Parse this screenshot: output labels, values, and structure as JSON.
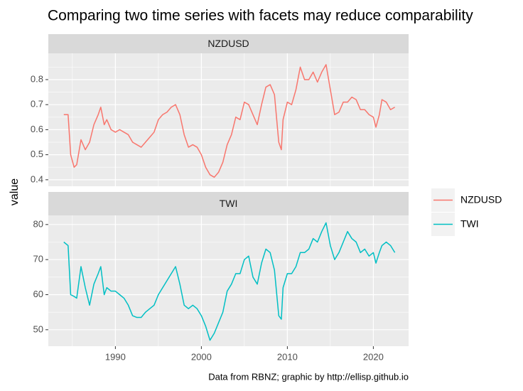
{
  "title": "Comparing two time series with facets may reduce comparability",
  "y_label": "value",
  "caption": "Data from RBNZ; graphic by http://ellisp.github.io",
  "chart_data": [
    {
      "type": "line",
      "x": [
        1984.0,
        1984.5,
        1984.8,
        1985.2,
        1985.5,
        1986.0,
        1986.5,
        1987.0,
        1987.5,
        1988.0,
        1988.3,
        1988.7,
        1989.0,
        1989.5,
        1990.0,
        1990.5,
        1991.0,
        1991.5,
        1992.0,
        1992.5,
        1993.0,
        1993.5,
        1994.0,
        1994.5,
        1995.0,
        1995.5,
        1996.0,
        1996.5,
        1997.0,
        1997.5,
        1998.0,
        1998.5,
        1999.0,
        1999.5,
        2000.0,
        2000.5,
        2001.0,
        2001.5,
        2002.0,
        2002.5,
        2003.0,
        2003.5,
        2004.0,
        2004.5,
        2005.0,
        2005.5,
        2006.0,
        2006.5,
        2007.0,
        2007.5,
        2008.0,
        2008.5,
        2009.0,
        2009.3,
        2009.5,
        2010.0,
        2010.5,
        2011.0,
        2011.5,
        2012.0,
        2012.5,
        2013.0,
        2013.5,
        2014.0,
        2014.5,
        2015.0,
        2015.5,
        2016.0,
        2016.5,
        2017.0,
        2017.5,
        2018.0,
        2018.5,
        2019.0,
        2019.5,
        2020.0,
        2020.3,
        2020.7,
        2021.0,
        2021.5,
        2022.0,
        2022.5
      ],
      "series": [
        {
          "name": "NZDUSD",
          "color": "#F8766D",
          "values": [
            0.66,
            0.66,
            0.5,
            0.45,
            0.46,
            0.56,
            0.52,
            0.55,
            0.62,
            0.66,
            0.69,
            0.62,
            0.64,
            0.6,
            0.59,
            0.6,
            0.59,
            0.58,
            0.55,
            0.54,
            0.53,
            0.55,
            0.57,
            0.59,
            0.64,
            0.66,
            0.67,
            0.69,
            0.7,
            0.66,
            0.58,
            0.53,
            0.54,
            0.53,
            0.5,
            0.45,
            0.42,
            0.41,
            0.43,
            0.47,
            0.54,
            0.58,
            0.65,
            0.64,
            0.71,
            0.7,
            0.66,
            0.62,
            0.7,
            0.77,
            0.78,
            0.74,
            0.55,
            0.52,
            0.64,
            0.71,
            0.7,
            0.76,
            0.85,
            0.8,
            0.8,
            0.83,
            0.79,
            0.83,
            0.86,
            0.76,
            0.66,
            0.67,
            0.71,
            0.71,
            0.73,
            0.72,
            0.68,
            0.68,
            0.66,
            0.65,
            0.61,
            0.66,
            0.72,
            0.71,
            0.68,
            0.69
          ]
        }
      ],
      "xlim": [
        1982.2,
        2024.1
      ],
      "xticks": [
        1990,
        2000,
        2010,
        2020
      ],
      "ylim": [
        0.374,
        0.905
      ],
      "yticks": [
        0.4,
        0.5,
        0.6,
        0.7,
        0.8
      ],
      "grid": true
    },
    {
      "type": "line",
      "x": [
        1984.0,
        1984.5,
        1984.8,
        1985.2,
        1985.5,
        1986.0,
        1986.5,
        1987.0,
        1987.5,
        1988.0,
        1988.3,
        1988.7,
        1989.0,
        1989.5,
        1990.0,
        1990.5,
        1991.0,
        1991.5,
        1992.0,
        1992.5,
        1993.0,
        1993.5,
        1994.0,
        1994.5,
        1995.0,
        1995.5,
        1996.0,
        1996.5,
        1997.0,
        1997.5,
        1998.0,
        1998.5,
        1999.0,
        1999.5,
        2000.0,
        2000.5,
        2001.0,
        2001.5,
        2002.0,
        2002.5,
        2003.0,
        2003.5,
        2004.0,
        2004.5,
        2005.0,
        2005.5,
        2006.0,
        2006.5,
        2007.0,
        2007.5,
        2008.0,
        2008.5,
        2009.0,
        2009.3,
        2009.5,
        2010.0,
        2010.5,
        2011.0,
        2011.5,
        2012.0,
        2012.5,
        2013.0,
        2013.5,
        2014.0,
        2014.5,
        2015.0,
        2015.5,
        2016.0,
        2016.5,
        2017.0,
        2017.5,
        2018.0,
        2018.5,
        2019.0,
        2019.5,
        2020.0,
        2020.3,
        2020.7,
        2021.0,
        2021.5,
        2022.0,
        2022.5
      ],
      "series": [
        {
          "name": "TWI",
          "color": "#00BFC4",
          "values": [
            75,
            74,
            60,
            59.5,
            59,
            68,
            62,
            57,
            63,
            66,
            68,
            60,
            62,
            61,
            61,
            60,
            59,
            57,
            54,
            53.5,
            53.5,
            55,
            56,
            57,
            60,
            62,
            64,
            66,
            68,
            63,
            57,
            56,
            57,
            56,
            54,
            51,
            47,
            49,
            52,
            55,
            61,
            63,
            66,
            66,
            70,
            71,
            65,
            63,
            69,
            73,
            72,
            67,
            54,
            53,
            62,
            66,
            66,
            68,
            72,
            72,
            73,
            76,
            75,
            78,
            80.5,
            74,
            70,
            72,
            75,
            78,
            76,
            75,
            72,
            73,
            71,
            72,
            69,
            72,
            74,
            75,
            74,
            72
          ]
        }
      ],
      "xlim": [
        1982.2,
        2024.1
      ],
      "xticks": [
        1990,
        2000,
        2010,
        2020
      ],
      "ylim": [
        45.3,
        82.6
      ],
      "yticks": [
        50,
        60,
        70,
        80
      ],
      "grid": true
    }
  ]
}
